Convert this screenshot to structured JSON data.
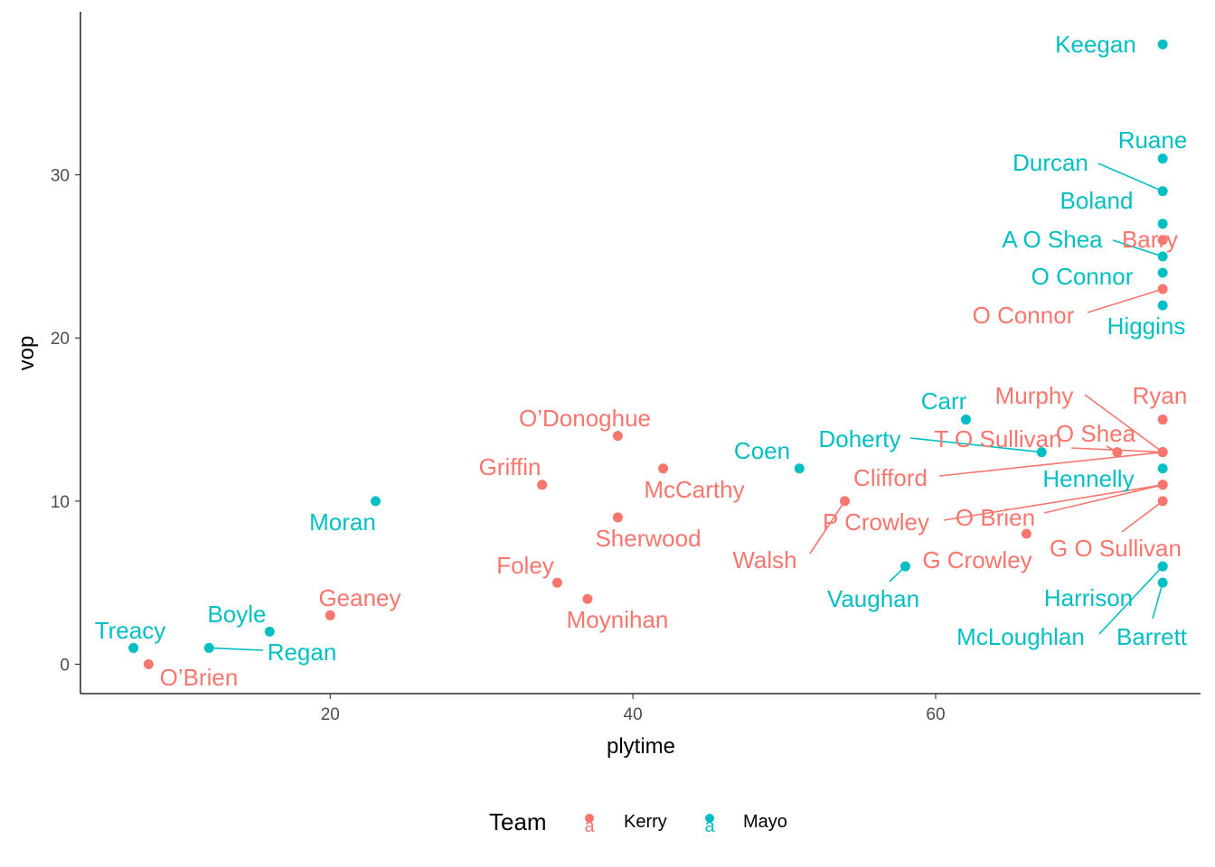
{
  "colors": {
    "Kerry": "#F8766D",
    "Mayo": "#00BFC4"
  },
  "chart_data": {
    "type": "scatter",
    "xlabel": "plytime",
    "ylabel": "vop",
    "xlim": [
      3.5,
      77.5
    ],
    "ylim": [
      -1.8,
      40
    ],
    "x_ticks": [
      20,
      40,
      60
    ],
    "y_ticks": [
      0,
      10,
      20,
      30
    ],
    "x_tick_labels": [
      "20",
      "40",
      "60"
    ],
    "y_tick_labels": [
      "0",
      "10",
      "20",
      "30"
    ],
    "grid": false,
    "legend": {
      "title": "Team",
      "position": "bottom",
      "entries": [
        "Kerry",
        "Mayo"
      ],
      "key_glyph": "a"
    },
    "points": [
      {
        "name": "Keegan",
        "team": "Mayo",
        "x": 75,
        "y": 38
      },
      {
        "name": "Ruane",
        "team": "Mayo",
        "x": 75,
        "y": 31
      },
      {
        "name": "Durcan",
        "team": "Mayo",
        "x": 75,
        "y": 29
      },
      {
        "name": "Boland",
        "team": "Mayo",
        "x": 75,
        "y": 27
      },
      {
        "name": "Barry",
        "team": "Kerry",
        "x": 75,
        "y": 26
      },
      {
        "name": "A O Shea",
        "team": "Mayo",
        "x": 75,
        "y": 25
      },
      {
        "name": "O Connor",
        "team": "Mayo",
        "x": 75,
        "y": 24
      },
      {
        "name": "O Connor",
        "team": "Kerry",
        "x": 75,
        "y": 23
      },
      {
        "name": "Higgins",
        "team": "Mayo",
        "x": 75,
        "y": 22
      },
      {
        "name": "Ryan",
        "team": "Kerry",
        "x": 75,
        "y": 15
      },
      {
        "name": "Carr",
        "team": "Mayo",
        "x": 62,
        "y": 15
      },
      {
        "name": "Murphy",
        "team": "Kerry",
        "x": 75,
        "y": 13
      },
      {
        "name": "O Shea",
        "team": "Kerry",
        "x": 72,
        "y": 13
      },
      {
        "name": "T O Sullivan",
        "team": "Kerry",
        "x": 75,
        "y": 13
      },
      {
        "name": "Doherty",
        "team": "Mayo",
        "x": 67,
        "y": 13
      },
      {
        "name": "Clifford",
        "team": "Kerry",
        "x": 75,
        "y": 13
      },
      {
        "name": "Hennelly",
        "team": "Mayo",
        "x": 75,
        "y": 12
      },
      {
        "name": "P Crowley",
        "team": "Kerry",
        "x": 75,
        "y": 11
      },
      {
        "name": "O Brien",
        "team": "Kerry",
        "x": 75,
        "y": 11
      },
      {
        "name": "G O Sullivan",
        "team": "Kerry",
        "x": 75,
        "y": 10
      },
      {
        "name": "G Crowley",
        "team": "Kerry",
        "x": 66,
        "y": 8
      },
      {
        "name": "Walsh",
        "team": "Kerry",
        "x": 54,
        "y": 10
      },
      {
        "name": "Coen",
        "team": "Mayo",
        "x": 51,
        "y": 12
      },
      {
        "name": "Vaughan",
        "team": "Mayo",
        "x": 58,
        "y": 6
      },
      {
        "name": "Harrison",
        "team": "Mayo",
        "x": 75,
        "y": 6
      },
      {
        "name": "McLoughlan",
        "team": "Mayo",
        "x": 75,
        "y": 6
      },
      {
        "name": "Barrett",
        "team": "Mayo",
        "x": 75,
        "y": 5
      },
      {
        "name": "O’Donoghue",
        "team": "Kerry",
        "x": 39,
        "y": 14
      },
      {
        "name": "McCarthy",
        "team": "Kerry",
        "x": 42,
        "y": 12
      },
      {
        "name": "Griffin",
        "team": "Kerry",
        "x": 34,
        "y": 11
      },
      {
        "name": "Sherwood",
        "team": "Kerry",
        "x": 39,
        "y": 9
      },
      {
        "name": "Foley",
        "team": "Kerry",
        "x": 35,
        "y": 5
      },
      {
        "name": "Moynihan",
        "team": "Kerry",
        "x": 37,
        "y": 4
      },
      {
        "name": "Moran",
        "team": "Mayo",
        "x": 23,
        "y": 10
      },
      {
        "name": "Geaney",
        "team": "Kerry",
        "x": 20,
        "y": 3
      },
      {
        "name": "Boyle",
        "team": "Mayo",
        "x": 16,
        "y": 2
      },
      {
        "name": "Regan",
        "team": "Mayo",
        "x": 12,
        "y": 1
      },
      {
        "name": "Treacy",
        "team": "Mayo",
        "x": 7,
        "y": 1
      },
      {
        "name": "O’Brien",
        "team": "Kerry",
        "x": 8,
        "y": 0
      }
    ]
  }
}
